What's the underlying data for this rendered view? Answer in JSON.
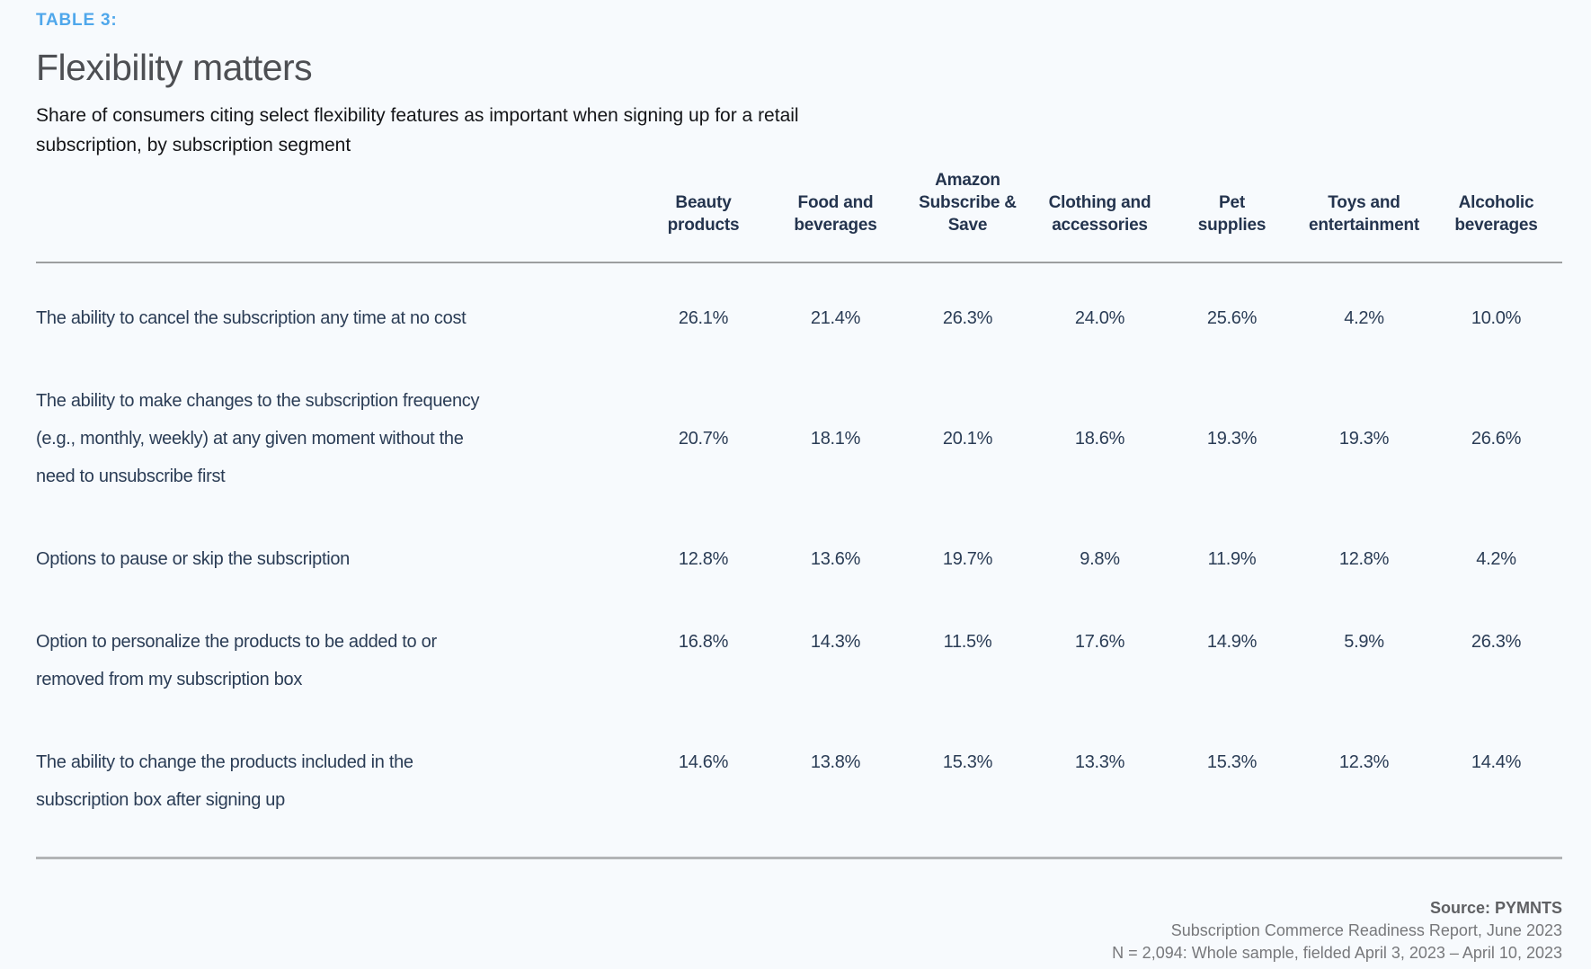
{
  "header": {
    "kicker": "TABLE 3:",
    "title": "Flexibility matters",
    "subtitle": "Share of consumers citing select flexibility features as important when signing up for a retail\nsubscription, by subscription segment"
  },
  "table": {
    "columns": [
      "Beauty\nproducts",
      "Food and\nbeverages",
      "Amazon\nSubscribe &\nSave",
      "Clothing and\naccessories",
      "Pet\nsupplies",
      "Toys and\nentertainment",
      "Alcoholic\nbeverages"
    ],
    "rows": [
      {
        "label": "The ability to cancel the subscription any time at no cost",
        "values": [
          "26.1%",
          "21.4%",
          "26.3%",
          "24.0%",
          "25.6%",
          "4.2%",
          "10.0%"
        ]
      },
      {
        "label": "The ability to make changes to the subscription frequency\n(e.g., monthly, weekly) at any given moment without the\nneed to unsubscribe first",
        "values": [
          "20.7%",
          "18.1%",
          "20.1%",
          "18.6%",
          "19.3%",
          "19.3%",
          "26.6%"
        ]
      },
      {
        "label": "Options to pause or skip the subscription",
        "values": [
          "12.8%",
          "13.6%",
          "19.7%",
          "9.8%",
          "11.9%",
          "12.8%",
          "4.2%"
        ]
      },
      {
        "label": "Option to personalize the products to be added to or\nremoved from my subscription box",
        "values": [
          "16.8%",
          "14.3%",
          "11.5%",
          "17.6%",
          "14.9%",
          "5.9%",
          "26.3%"
        ]
      },
      {
        "label": "The ability to change the products included in the\nsubscription box after signing up",
        "values": [
          "14.6%",
          "13.8%",
          "15.3%",
          "13.3%",
          "15.3%",
          "12.3%",
          "14.4%"
        ]
      }
    ]
  },
  "footer": {
    "source": "Source: PYMNTS",
    "report": "Subscription Commerce Readiness Report, June 2023",
    "sample": "N = 2,094: Whole sample, fielded  April 3, 2023 – April 10, 2023"
  },
  "colors": {
    "background": "#F7FAFD",
    "kicker_blue": "#4FA7EB",
    "title_gray": "#4D4F53",
    "table_navy": "#2A3C55",
    "footer_gray": "#77787B",
    "rule_gray": "#9C9EA0"
  },
  "chart_data": {
    "type": "table",
    "title": "Flexibility matters",
    "subtitle": "Share of consumers citing select flexibility features as important when signing up for a retail subscription, by subscription segment",
    "unit": "%",
    "categories": [
      "Beauty products",
      "Food and beverages",
      "Amazon Subscribe & Save",
      "Clothing and accessories",
      "Pet supplies",
      "Toys and entertainment",
      "Alcoholic beverages"
    ],
    "series": [
      {
        "name": "The ability to cancel the subscription any time at no cost",
        "values": [
          26.1,
          21.4,
          26.3,
          24.0,
          25.6,
          4.2,
          10.0
        ]
      },
      {
        "name": "The ability to make changes to the subscription frequency (e.g., monthly, weekly) at any given moment without the need to unsubscribe first",
        "values": [
          20.7,
          18.1,
          20.1,
          18.6,
          19.3,
          19.3,
          26.6
        ]
      },
      {
        "name": "Options to pause or skip the subscription",
        "values": [
          12.8,
          13.6,
          19.7,
          9.8,
          11.9,
          12.8,
          4.2
        ]
      },
      {
        "name": "Option to personalize the products to be added to or removed from my subscription box",
        "values": [
          16.8,
          14.3,
          11.5,
          17.6,
          14.9,
          5.9,
          26.3
        ]
      },
      {
        "name": "The ability to change the products included in the subscription box after signing up",
        "values": [
          14.6,
          13.8,
          15.3,
          13.3,
          15.3,
          12.3,
          14.4
        ]
      }
    ]
  }
}
